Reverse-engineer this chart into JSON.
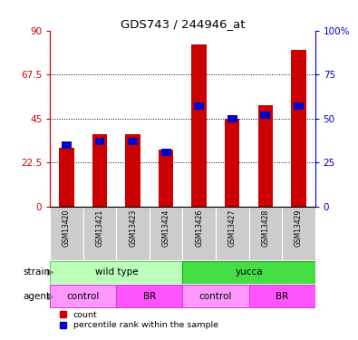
{
  "title": "GDS743 / 244946_at",
  "samples": [
    "GSM13420",
    "GSM13421",
    "GSM13423",
    "GSM13424",
    "GSM13426",
    "GSM13427",
    "GSM13428",
    "GSM13429"
  ],
  "red_values": [
    30,
    37,
    37,
    29,
    83,
    45,
    52,
    80
  ],
  "blue_values": [
    35,
    37,
    37,
    31,
    57,
    50,
    52,
    57
  ],
  "red_color": "#cc0000",
  "blue_color": "#0000cc",
  "bar_width": 0.45,
  "ylim_left": [
    0,
    90
  ],
  "ylim_right": [
    0,
    100
  ],
  "yticks_left": [
    0,
    22.5,
    45,
    67.5,
    90
  ],
  "ytick_labels_left": [
    "0",
    "22.5",
    "45",
    "67.5",
    "90"
  ],
  "yticks_right": [
    0,
    25,
    50,
    75,
    100
  ],
  "ytick_labels_right": [
    "0",
    "25",
    "50",
    "75",
    "100%"
  ],
  "strain_labels": [
    {
      "text": "wild type",
      "start": 0,
      "end": 4,
      "color": "#bbffbb",
      "edge_color": "#66cc66"
    },
    {
      "text": "yucca",
      "start": 4,
      "end": 8,
      "color": "#44dd44",
      "edge_color": "#22aa22"
    }
  ],
  "agent_labels": [
    {
      "text": "control",
      "start": 0,
      "end": 2,
      "color": "#ff99ff",
      "edge_color": "#cc44cc"
    },
    {
      "text": "BR",
      "start": 2,
      "end": 4,
      "color": "#ff55ff",
      "edge_color": "#cc44cc"
    },
    {
      "text": "control",
      "start": 4,
      "end": 6,
      "color": "#ff99ff",
      "edge_color": "#cc44cc"
    },
    {
      "text": "BR",
      "start": 6,
      "end": 8,
      "color": "#ff55ff",
      "edge_color": "#cc44cc"
    }
  ],
  "strain_row_label": "strain",
  "agent_row_label": "agent",
  "legend_count": "count",
  "legend_percentile": "percentile rank within the sample",
  "bg_color": "#ffffff",
  "x_bg_color": "#cccccc"
}
